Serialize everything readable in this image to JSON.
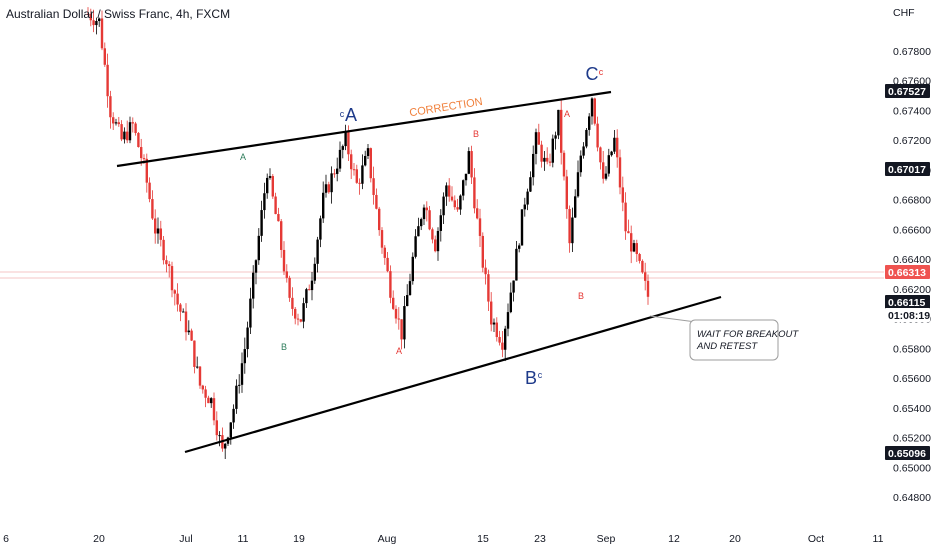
{
  "chart_data": {
    "type": "candlestick",
    "title": "Australian Dollar / Swiss Franc, 4h, FXCM",
    "currency": "CHF",
    "ylim": [
      0.647,
      0.6805
    ],
    "y_ticks": [
      "0.67800",
      "0.67600",
      "0.67400",
      "0.67200",
      "0.67000",
      "0.66800",
      "0.66600",
      "0.66400",
      "0.66200",
      "0.66000",
      "0.65800",
      "0.65600",
      "0.65400",
      "0.65200",
      "0.65000",
      "0.64800"
    ],
    "x_ticks": [
      "6",
      "20",
      "Jul",
      "11",
      "19",
      "Aug",
      "15",
      "23",
      "Sep",
      "12",
      "20",
      "Oct",
      "11"
    ],
    "price_tags": [
      {
        "value": "0.67527",
        "style": "dark"
      },
      {
        "value": "0.67017",
        "style": "dark"
      },
      {
        "value": "0.66313",
        "style": "red"
      },
      {
        "value": "0.66115",
        "style": "dark"
      },
      {
        "value": "01:08:19",
        "style": "countdown"
      },
      {
        "value": "0.65096",
        "style": "dark"
      }
    ],
    "price_path": [
      {
        "t": 0,
        "p": 0.6805
      },
      {
        "t": 2,
        "p": 0.68
      },
      {
        "t": 4,
        "p": 0.674
      },
      {
        "t": 6,
        "p": 0.672
      },
      {
        "t": 8,
        "p": 0.673
      },
      {
        "t": 10,
        "p": 0.6702
      },
      {
        "t": 12,
        "p": 0.666
      },
      {
        "t": 14,
        "p": 0.664
      },
      {
        "t": 16,
        "p": 0.661
      },
      {
        "t": 18,
        "p": 0.659
      },
      {
        "t": 20,
        "p": 0.6555
      },
      {
        "t": 22,
        "p": 0.6545
      },
      {
        "t": 24,
        "p": 0.651
      },
      {
        "t": 26,
        "p": 0.654
      },
      {
        "t": 28,
        "p": 0.658
      },
      {
        "t": 30,
        "p": 0.664
      },
      {
        "t": 32,
        "p": 0.67
      },
      {
        "t": 34,
        "p": 0.666
      },
      {
        "t": 36,
        "p": 0.661
      },
      {
        "t": 38,
        "p": 0.66
      },
      {
        "t": 40,
        "p": 0.663
      },
      {
        "t": 42,
        "p": 0.668
      },
      {
        "t": 44,
        "p": 0.67
      },
      {
        "t": 46,
        "p": 0.672
      },
      {
        "t": 48,
        "p": 0.669
      },
      {
        "t": 50,
        "p": 0.671
      },
      {
        "t": 52,
        "p": 0.666
      },
      {
        "t": 54,
        "p": 0.662
      },
      {
        "t": 56,
        "p": 0.659
      },
      {
        "t": 58,
        "p": 0.664
      },
      {
        "t": 60,
        "p": 0.668
      },
      {
        "t": 62,
        "p": 0.665
      },
      {
        "t": 64,
        "p": 0.669
      },
      {
        "t": 66,
        "p": 0.667
      },
      {
        "t": 68,
        "p": 0.671
      },
      {
        "t": 70,
        "p": 0.665
      },
      {
        "t": 72,
        "p": 0.66
      },
      {
        "t": 74,
        "p": 0.6585
      },
      {
        "t": 76,
        "p": 0.663
      },
      {
        "t": 78,
        "p": 0.668
      },
      {
        "t": 80,
        "p": 0.672
      },
      {
        "t": 82,
        "p": 0.67
      },
      {
        "t": 84,
        "p": 0.6735
      },
      {
        "t": 86,
        "p": 0.665
      },
      {
        "t": 88,
        "p": 0.671
      },
      {
        "t": 90,
        "p": 0.675
      },
      {
        "t": 92,
        "p": 0.669
      },
      {
        "t": 94,
        "p": 0.672
      },
      {
        "t": 96,
        "p": 0.666
      },
      {
        "t": 98,
        "p": 0.664
      },
      {
        "t": 100,
        "p": 0.6615
      }
    ],
    "trendlines": [
      {
        "name": "upper",
        "from": {
          "t": 10,
          "p": 0.6702
        },
        "to": {
          "t": 91,
          "p": 0.67527
        }
      },
      {
        "name": "lower",
        "from": {
          "t": 25,
          "p": 0.65096
        },
        "to": {
          "t": 105,
          "p": 0.662
        }
      }
    ],
    "wave_labels_small": [
      {
        "text": "A",
        "t": 32,
        "p": 0.6704,
        "color": "#2e7d5b"
      },
      {
        "text": "B",
        "t": 37.5,
        "p": 0.65895,
        "color": "#2e7d5b"
      },
      {
        "text": "A",
        "t": 78,
        "p": 0.67252,
        "color": "#e53935"
      },
      {
        "text": "A",
        "t": 57,
        "p": 0.6588,
        "color": "#e53935"
      },
      {
        "text": "B",
        "t": 72,
        "p": 0.6678,
        "color": "#e53935"
      },
      {
        "text": "B",
        "t": 85,
        "p": 0.6614,
        "color": "#e53935"
      }
    ],
    "wave_labels_big": [
      {
        "big": "A",
        "small": "c",
        "t": 48.5,
        "p": 0.67267
      },
      {
        "big": "C",
        "small": "c",
        "t": 84.5,
        "p": 0.6762
      },
      {
        "big": "B",
        "small": "c",
        "t": 75.5,
        "p": 0.65627
      }
    ],
    "annotations": {
      "correction": "CORRECTION",
      "note_line1": "WAIT FOR BREAKOUT",
      "note_line2": "AND RETEST"
    }
  }
}
